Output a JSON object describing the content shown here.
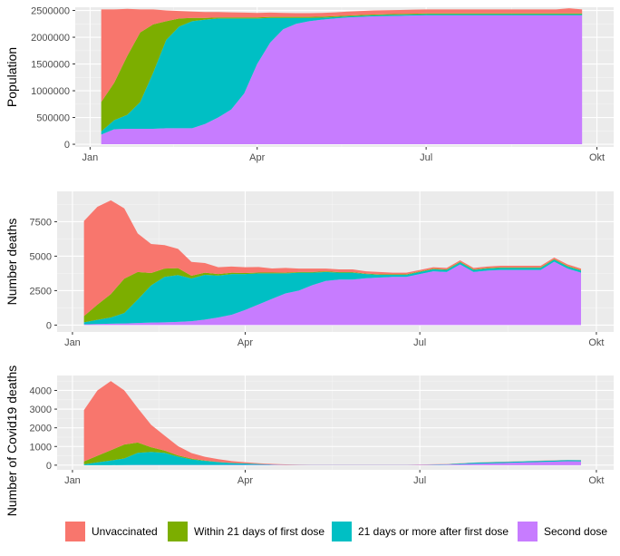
{
  "chart_data": [
    {
      "type": "area",
      "ylabel": "Population",
      "ylim": [
        -50000,
        2560000
      ],
      "yticks": [
        0,
        500000,
        1000000,
        1500000,
        2000000,
        2500000
      ],
      "ytick_labels": [
        "0",
        "500000",
        "1000000",
        "1500000",
        "2000000",
        "2500000"
      ],
      "x_tick_labels": [
        "Jan",
        "Apr",
        "Jul",
        "Okt"
      ],
      "grid": true,
      "x": [
        6,
        13,
        20,
        27,
        34,
        41,
        48,
        55,
        62,
        69,
        76,
        83,
        90,
        97,
        104,
        111,
        118,
        125,
        132,
        139,
        146,
        153,
        160,
        167,
        174,
        181,
        188,
        195,
        202,
        209,
        216,
        223,
        230,
        237,
        244,
        251,
        258,
        265
      ],
      "series": [
        {
          "name": "Second dose",
          "color": "#C77CFF",
          "values": [
            180000,
            280000,
            290000,
            290000,
            290000,
            300000,
            300000,
            300000,
            380000,
            500000,
            650000,
            950000,
            1500000,
            1900000,
            2150000,
            2250000,
            2300000,
            2330000,
            2350000,
            2370000,
            2380000,
            2390000,
            2395000,
            2400000,
            2405000,
            2410000,
            2410000,
            2410000,
            2410000,
            2410000,
            2410000,
            2410000,
            2410000,
            2410000,
            2410000,
            2410000,
            2410000,
            2410000
          ]
        },
        {
          "name": "21 days or more after first dose",
          "color": "#00BFC4",
          "values": [
            60000,
            170000,
            260000,
            500000,
            1050000,
            1650000,
            1900000,
            2000000,
            1950000,
            1850000,
            1700000,
            1400000,
            850000,
            460000,
            210000,
            110000,
            60000,
            35000,
            25000,
            20000,
            20000,
            20000,
            20000,
            20000,
            20000,
            20000,
            20000,
            20000,
            20000,
            20000,
            20000,
            20000,
            20000,
            20000,
            20000,
            20000,
            20000,
            20000
          ]
        },
        {
          "name": "Within 21 days of first dose",
          "color": "#7CAE00",
          "values": [
            550000,
            700000,
            1100000,
            1300000,
            900000,
            350000,
            150000,
            60000,
            30000,
            20000,
            20000,
            20000,
            20000,
            20000,
            20000,
            20000,
            20000,
            20000,
            20000,
            15000,
            15000,
            15000,
            15000,
            15000,
            15000,
            15000,
            15000,
            15000,
            15000,
            15000,
            15000,
            15000,
            15000,
            15000,
            15000,
            15000,
            15000,
            15000
          ]
        },
        {
          "name": "Unvaccinated",
          "color": "#F8766D",
          "values": [
            1730000,
            1370000,
            880000,
            430000,
            280000,
            200000,
            140000,
            120000,
            110000,
            100000,
            95000,
            90000,
            85000,
            80000,
            75000,
            70000,
            70000,
            70000,
            70000,
            75000,
            75000,
            75000,
            75000,
            75000,
            75000,
            75000,
            75000,
            75000,
            75000,
            75000,
            75000,
            75000,
            75000,
            75000,
            75000,
            75000,
            95000,
            75000
          ]
        }
      ]
    },
    {
      "type": "area",
      "ylabel": "Number deaths",
      "ylim": [
        -500,
        9700
      ],
      "yticks": [
        0,
        2500,
        5000,
        7500
      ],
      "ytick_labels": [
        "0",
        "2500",
        "5000",
        "7500"
      ],
      "x_tick_labels": [
        "Jan",
        "Apr",
        "Jul",
        "Okt"
      ],
      "grid": true,
      "x": [
        6,
        13,
        20,
        27,
        34,
        41,
        48,
        55,
        62,
        69,
        76,
        83,
        90,
        97,
        104,
        111,
        118,
        125,
        132,
        139,
        146,
        153,
        160,
        167,
        174,
        181,
        188,
        195,
        202,
        209,
        216,
        223,
        230,
        237,
        244,
        251,
        258,
        265
      ],
      "series": [
        {
          "name": "Second dose",
          "color": "#C77CFF",
          "values": [
            50,
            80,
            100,
            120,
            150,
            180,
            200,
            230,
            280,
            400,
            550,
            750,
            1100,
            1500,
            1900,
            2300,
            2500,
            2900,
            3200,
            3300,
            3300,
            3400,
            3450,
            3500,
            3500,
            3700,
            3900,
            3850,
            4400,
            3850,
            3950,
            4000,
            4000,
            4000,
            4000,
            4600,
            4100,
            3800
          ]
        },
        {
          "name": "21 days or more after first dose",
          "color": "#00BFC4",
          "values": [
            150,
            300,
            450,
            750,
            1700,
            2700,
            3300,
            3400,
            3100,
            3250,
            3050,
            2950,
            2600,
            2250,
            1850,
            1450,
            1300,
            900,
            650,
            500,
            500,
            300,
            200,
            150,
            150,
            150,
            150,
            150,
            150,
            150,
            150,
            150,
            150,
            150,
            150,
            150,
            150,
            150
          ]
        },
        {
          "name": "Within 21 days of first dose",
          "color": "#7CAE00",
          "values": [
            450,
            1100,
            1700,
            2500,
            2000,
            900,
            600,
            500,
            200,
            150,
            100,
            100,
            80,
            60,
            60,
            50,
            50,
            50,
            50,
            40,
            40,
            40,
            40,
            40,
            40,
            40,
            40,
            40,
            40,
            40,
            40,
            40,
            40,
            40,
            40,
            40,
            40,
            40
          ]
        },
        {
          "name": "Unvaccinated",
          "color": "#F8766D",
          "values": [
            6900,
            7100,
            6800,
            5100,
            2800,
            2100,
            1700,
            1400,
            1000,
            700,
            500,
            450,
            420,
            400,
            300,
            350,
            250,
            250,
            200,
            200,
            200,
            160,
            160,
            110,
            110,
            110,
            110,
            110,
            110,
            110,
            110,
            110,
            110,
            110,
            110,
            110,
            110,
            110
          ]
        }
      ]
    },
    {
      "type": "area",
      "ylabel": "Number of Covid19 deaths",
      "ylim": [
        -250,
        4800
      ],
      "yticks": [
        0,
        1000,
        2000,
        3000,
        4000
      ],
      "ytick_labels": [
        "0",
        "1000",
        "2000",
        "3000",
        "4000"
      ],
      "x_tick_labels": [
        "Jan",
        "Apr",
        "Jul",
        "Okt"
      ],
      "grid": true,
      "x": [
        6,
        13,
        20,
        27,
        34,
        41,
        48,
        55,
        62,
        69,
        76,
        83,
        90,
        97,
        104,
        111,
        118,
        125,
        132,
        139,
        146,
        153,
        160,
        167,
        174,
        181,
        188,
        195,
        202,
        209,
        216,
        223,
        230,
        237,
        244,
        251,
        258,
        265
      ],
      "series": [
        {
          "name": "Second dose",
          "color": "#C77CFF",
          "values": [
            0,
            0,
            0,
            5,
            10,
            10,
            10,
            10,
            10,
            10,
            10,
            15,
            20,
            20,
            15,
            10,
            10,
            10,
            10,
            10,
            10,
            10,
            10,
            10,
            10,
            15,
            20,
            30,
            50,
            70,
            90,
            110,
            130,
            150,
            170,
            190,
            210,
            200
          ]
        },
        {
          "name": "21 days or more after first dose",
          "color": "#00BFC4",
          "values": [
            50,
            150,
            250,
            350,
            650,
            700,
            650,
            450,
            300,
            220,
            150,
            100,
            70,
            40,
            20,
            10,
            5,
            5,
            5,
            5,
            5,
            5,
            5,
            5,
            5,
            10,
            15,
            20,
            40,
            60,
            60,
            60,
            60,
            60,
            60,
            60,
            60,
            60
          ]
        },
        {
          "name": "Within 21 days of first dose",
          "color": "#7CAE00",
          "values": [
            150,
            350,
            550,
            750,
            550,
            250,
            120,
            60,
            40,
            20,
            10,
            5,
            5,
            5,
            0,
            0,
            0,
            0,
            0,
            0,
            0,
            0,
            0,
            0,
            0,
            0,
            0,
            0,
            0,
            0,
            0,
            0,
            0,
            0,
            0,
            0,
            0,
            0
          ]
        },
        {
          "name": "Unvaccinated",
          "color": "#F8766D",
          "values": [
            2750,
            3500,
            3700,
            2900,
            1850,
            1200,
            800,
            500,
            300,
            200,
            150,
            100,
            60,
            40,
            30,
            20,
            15,
            10,
            10,
            10,
            10,
            10,
            10,
            10,
            10,
            10,
            10,
            10,
            10,
            10,
            10,
            10,
            10,
            10,
            10,
            10,
            10,
            10
          ]
        }
      ]
    }
  ],
  "legend": {
    "placement": "bottom",
    "items": [
      {
        "label": "Unvaccinated",
        "color": "#F8766D"
      },
      {
        "label": "Within 21 days of first dose",
        "color": "#7CAE00"
      },
      {
        "label": "21 days or more after first dose",
        "color": "#00BFC4"
      },
      {
        "label": "Second dose",
        "color": "#C77CFF"
      }
    ]
  }
}
